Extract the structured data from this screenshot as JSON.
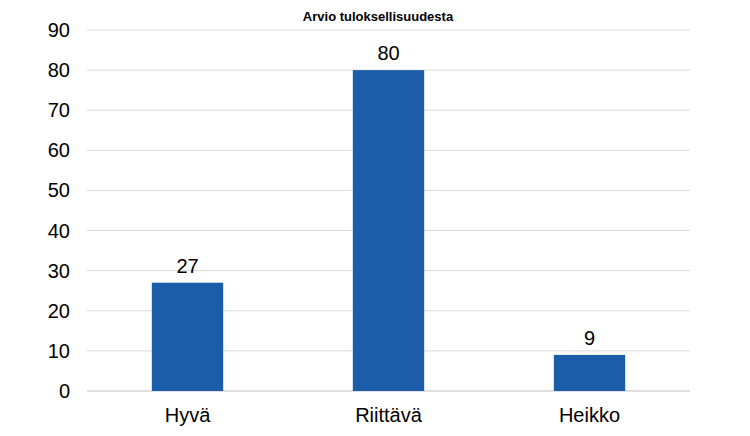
{
  "chart_data": {
    "type": "bar",
    "title": "Arvio tuloksellisuudesta",
    "categories": [
      "Hyvä",
      "Riittävä",
      "Heikko"
    ],
    "values": [
      27,
      80,
      9
    ],
    "color": "#1c5daa",
    "ylim": [
      0,
      90
    ],
    "yticks": [
      0,
      10,
      20,
      30,
      40,
      50,
      60,
      70,
      80,
      90
    ],
    "grid": true,
    "data_labels": true
  }
}
